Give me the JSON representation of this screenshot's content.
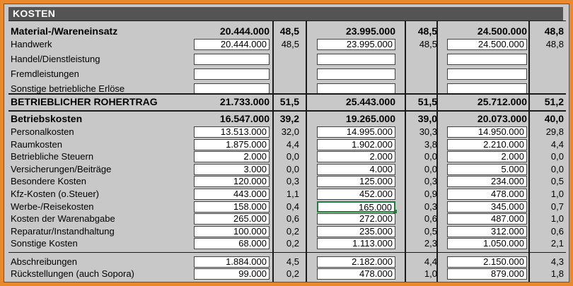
{
  "title": "KOSTEN",
  "sections": [
    {
      "header": {
        "label": "Material-/Wareneinsatz",
        "v1": "20.444.000",
        "p1": "48,5",
        "v2": "23.995.000",
        "p2": "48,5",
        "v3": "24.500.000",
        "p3": "48,8"
      },
      "rows": [
        {
          "label": "Handwerk",
          "v1": "20.444.000",
          "p1": "48,5",
          "v2": "23.995.000",
          "p2": "48,5",
          "v3": "24.500.000",
          "p3": "48,8"
        },
        {
          "label": "Handel/Dienstleistung",
          "v1": "",
          "p1": "",
          "v2": "",
          "p2": "",
          "v3": "",
          "p3": ""
        },
        {
          "label": "Fremdleistungen",
          "v1": "",
          "p1": "",
          "v2": "",
          "p2": "",
          "v3": "",
          "p3": ""
        },
        {
          "label": "Sonstige betriebliche Erlöse",
          "v1": "",
          "p1": "",
          "v2": "",
          "p2": "",
          "v3": "",
          "p3": ""
        }
      ]
    },
    {
      "header": {
        "label": "BETRIEBLICHER ROHERTRAG",
        "v1": "21.733.000",
        "p1": "51,5",
        "v2": "25.443.000",
        "p2": "51,5",
        "v3": "25.712.000",
        "p3": "51,2"
      },
      "rows": []
    },
    {
      "header": {
        "label": "Betriebskosten",
        "v1": "16.547.000",
        "p1": "39,2",
        "v2": "19.265.000",
        "p2": "39,0",
        "v3": "20.073.000",
        "p3": "40,0"
      },
      "rows": [
        {
          "label": "Personalkosten",
          "v1": "13.513.000",
          "p1": "32,0",
          "v2": "14.995.000",
          "p2": "30,3",
          "v3": "14.950.000",
          "p3": "29,8"
        },
        {
          "label": "Raumkosten",
          "v1": "1.875.000",
          "p1": "4,4",
          "v2": "1.902.000",
          "p2": "3,8",
          "v3": "2.210.000",
          "p3": "4,4"
        },
        {
          "label": "Betriebliche Steuern",
          "v1": "2.000",
          "p1": "0,0",
          "v2": "2.000",
          "p2": "0,0",
          "v3": "2.000",
          "p3": "0,0"
        },
        {
          "label": "Versicherungen/Beiträge",
          "v1": "3.000",
          "p1": "0,0",
          "v2": "4.000",
          "p2": "0,0",
          "v3": "5.000",
          "p3": "0,0"
        },
        {
          "label": "Besondere Kosten",
          "v1": "120.000",
          "p1": "0,3",
          "v2": "125.000",
          "p2": "0,3",
          "v3": "234.000",
          "p3": "0,5"
        },
        {
          "label": "Kfz-Kosten (o.Steuer)",
          "v1": "443.000",
          "p1": "1,1",
          "v2": "452.000",
          "p2": "0,9",
          "v3": "478.000",
          "p3": "1,0"
        },
        {
          "label": "Werbe-/Reisekosten",
          "v1": "158.000",
          "p1": "0,4",
          "v2": "165.000",
          "p2": "0,3",
          "v3": "345.000",
          "p3": "0,7"
        },
        {
          "label": "Kosten der Warenabgabe",
          "v1": "265.000",
          "p1": "0,6",
          "v2": "272.000",
          "p2": "0,6",
          "v3": "487.000",
          "p3": "1,0"
        },
        {
          "label": "Reparatur/Instandhaltung",
          "v1": "100.000",
          "p1": "0,2",
          "v2": "235.000",
          "p2": "0,5",
          "v3": "312.000",
          "p3": "0,6"
        },
        {
          "label": "Sonstige Kosten",
          "v1": "68.000",
          "p1": "0,2",
          "v2": "1.113.000",
          "p2": "2,3",
          "v3": "1.050.000",
          "p3": "2,1"
        }
      ]
    },
    {
      "header": null,
      "rows": [
        {
          "label": "Abschreibungen",
          "v1": "1.884.000",
          "p1": "4,5",
          "v2": "2.182.000",
          "p2": "4,4",
          "v3": "2.150.000",
          "p3": "4,3"
        },
        {
          "label": "Rückstellungen (auch Sopora)",
          "v1": "99.000",
          "p1": "0,2",
          "v2": "478.000",
          "p2": "1,0",
          "v3": "879.000",
          "p3": "1,8"
        }
      ]
    }
  ]
}
